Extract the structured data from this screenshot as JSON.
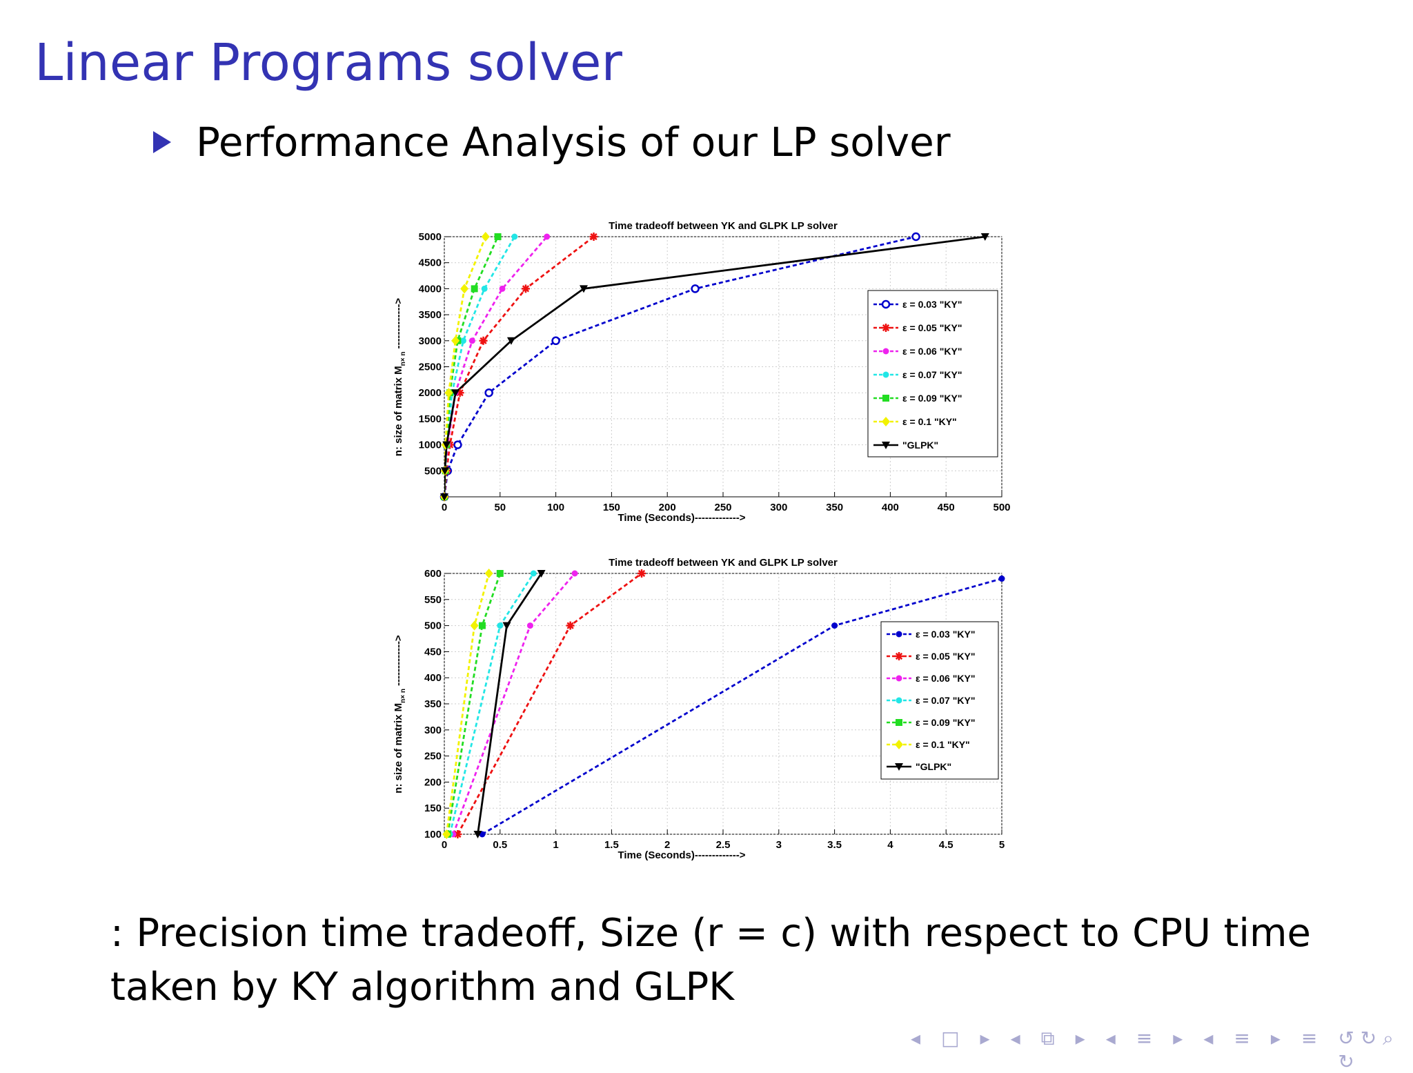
{
  "slide": {
    "title": "Linear Programs solver",
    "bullet": "Performance Analysis of our LP solver",
    "caption": ":  Precision time tradeoff, Size (r = c) with respect to CPU time taken by KY algorithm and GLPK"
  },
  "navigation": {
    "frame_prev": "◂",
    "frame_icon": "□",
    "frame_next": "▸",
    "subsection_prev": "◂",
    "subsection_icon": "⧉",
    "subsection_next": "▸",
    "section_prev": "◂",
    "section_icon": "≡",
    "section_next": "▸",
    "doc_prev": "◂",
    "doc_icon": "≡",
    "doc_next": "▸",
    "align_icon": "≡",
    "search_icons": "↺ ↻ ⌕ ↻"
  },
  "colors": {
    "title": "#3333b3",
    "eps003": "#0000cc",
    "eps005": "#ee1111",
    "eps006": "#ee22ee",
    "eps007": "#22e6e6",
    "eps009": "#22dd22",
    "eps01": "#f2f200",
    "glpk": "#000000"
  },
  "chart_data": [
    {
      "type": "line",
      "title": "Time tradeoff between YK and GLPK LP solver",
      "xlabel": "Time (Seconds)------------->",
      "ylabel": "n: size of matrix M",
      "ylabel_sub": "n× n",
      "ylabel_tail": "------------->",
      "xlim": [
        0,
        500
      ],
      "ylim": [
        0,
        5000
      ],
      "xticks": [
        0,
        50,
        100,
        150,
        200,
        250,
        300,
        350,
        400,
        450,
        500
      ],
      "yticks": [
        500,
        1000,
        1500,
        2000,
        2500,
        3000,
        3500,
        4000,
        4500,
        5000
      ],
      "grid": true,
      "legend_position": "right",
      "series": [
        {
          "name": "ε = 0.03 \"KY\"",
          "color_key": "eps003",
          "marker": "circle",
          "dashed": true,
          "x": [
            0,
            3,
            12,
            40,
            100,
            225,
            423
          ],
          "y": [
            0,
            500,
            1000,
            2000,
            3000,
            4000,
            5000
          ]
        },
        {
          "name": "ε = 0.05 \"KY\"",
          "color_key": "eps005",
          "marker": "star",
          "dashed": true,
          "x": [
            0,
            2,
            5,
            14,
            35,
            73,
            134
          ],
          "y": [
            0,
            500,
            1000,
            2000,
            3000,
            4000,
            5000
          ]
        },
        {
          "name": "ε = 0.06 \"KY\"",
          "color_key": "eps006",
          "marker": "dot",
          "dashed": true,
          "x": [
            0,
            1,
            3,
            10,
            25,
            52,
            92
          ],
          "y": [
            0,
            500,
            1000,
            2000,
            3000,
            4000,
            5000
          ]
        },
        {
          "name": "ε = 0.07 \"KY\"",
          "color_key": "eps007",
          "marker": "dot",
          "dashed": true,
          "x": [
            0,
            1,
            2,
            7,
            17,
            36,
            63
          ],
          "y": [
            0,
            500,
            1000,
            2000,
            3000,
            4000,
            5000
          ]
        },
        {
          "name": "ε = 0.09 \"KY\"",
          "color_key": "eps009",
          "marker": "square",
          "dashed": true,
          "x": [
            0,
            1,
            2,
            5,
            12,
            27,
            48
          ],
          "y": [
            0,
            500,
            1000,
            2000,
            3000,
            4000,
            5000
          ]
        },
        {
          "name": "ε = 0.1 \"KY\"",
          "color_key": "eps01",
          "marker": "diamond",
          "dashed": true,
          "x": [
            0,
            0.5,
            1,
            4,
            10,
            18,
            37
          ],
          "y": [
            0,
            500,
            1000,
            2000,
            3000,
            4000,
            5000
          ]
        },
        {
          "name": "\"GLPK\"",
          "color_key": "glpk",
          "marker": "triangle",
          "dashed": false,
          "x": [
            0,
            0.5,
            2,
            10,
            60,
            125,
            485
          ],
          "y": [
            0,
            500,
            1000,
            2000,
            3000,
            4000,
            5000
          ]
        }
      ]
    },
    {
      "type": "line",
      "title": "Time tradeoff between YK and GLPK LP solver",
      "xlabel": "Time (Seconds)------------->",
      "ylabel": "n: size of matrix M",
      "ylabel_sub": "n× n",
      "ylabel_tail": "------------->",
      "xlim": [
        0,
        5
      ],
      "ylim": [
        100,
        600
      ],
      "xticks": [
        0,
        0.5,
        1,
        1.5,
        2,
        2.5,
        3,
        3.5,
        4,
        4.5,
        5
      ],
      "yticks": [
        100,
        150,
        200,
        250,
        300,
        350,
        400,
        450,
        500,
        550,
        600
      ],
      "grid": true,
      "legend_position": "right",
      "series": [
        {
          "name": "ε = 0.03 \"KY\"",
          "color_key": "eps003",
          "marker": "dot",
          "dashed": true,
          "x": [
            0.34,
            3.5,
            5.0
          ],
          "y": [
            100,
            500,
            590
          ]
        },
        {
          "name": "ε = 0.05 \"KY\"",
          "color_key": "eps005",
          "marker": "star",
          "dashed": true,
          "x": [
            0.12,
            1.13,
            1.77
          ],
          "y": [
            100,
            500,
            600
          ]
        },
        {
          "name": "ε = 0.06 \"KY\"",
          "color_key": "eps006",
          "marker": "dot",
          "dashed": true,
          "x": [
            0.08,
            0.77,
            1.17
          ],
          "y": [
            100,
            500,
            600
          ]
        },
        {
          "name": "ε = 0.07 \"KY\"",
          "color_key": "eps007",
          "marker": "dot",
          "dashed": true,
          "x": [
            0.05,
            0.5,
            0.8
          ],
          "y": [
            100,
            500,
            600
          ]
        },
        {
          "name": "ε = 0.09 \"KY\"",
          "color_key": "eps009",
          "marker": "square",
          "dashed": true,
          "x": [
            0.03,
            0.34,
            0.5
          ],
          "y": [
            100,
            500,
            600
          ]
        },
        {
          "name": "ε = 0.1 \"KY\"",
          "color_key": "eps01",
          "marker": "diamond",
          "dashed": true,
          "x": [
            0.02,
            0.27,
            0.4
          ],
          "y": [
            100,
            500,
            600
          ]
        },
        {
          "name": "\"GLPK\"",
          "color_key": "glpk",
          "marker": "triangle",
          "dashed": false,
          "x": [
            0.3,
            0.56,
            0.87
          ],
          "y": [
            100,
            500,
            600
          ]
        }
      ]
    }
  ]
}
